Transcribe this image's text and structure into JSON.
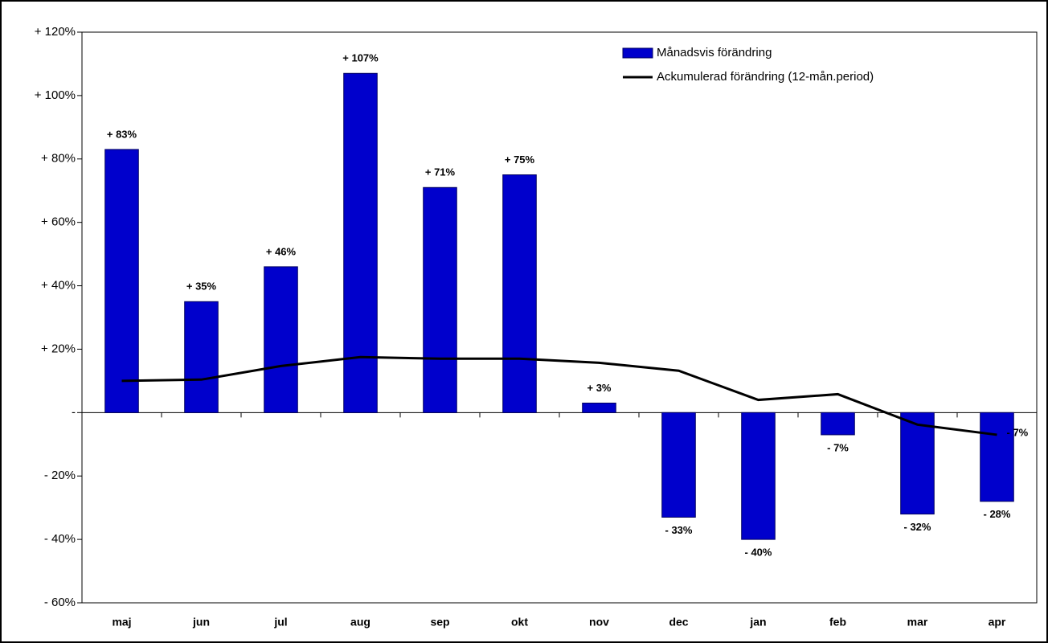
{
  "chart_data": {
    "type": "bar",
    "categories": [
      "maj",
      "jun",
      "jul",
      "aug",
      "sep",
      "okt",
      "nov",
      "dec",
      "jan",
      "feb",
      "mar",
      "apr"
    ],
    "ylim": [
      -60,
      120
    ],
    "yticks": [
      {
        "value": -60,
        "label": "- 60%"
      },
      {
        "value": -40,
        "label": "- 40%"
      },
      {
        "value": -20,
        "label": "- 20%"
      },
      {
        "value": 0,
        "label": "-"
      },
      {
        "value": 20,
        "label": "+ 20%"
      },
      {
        "value": 40,
        "label": "+ 40%"
      },
      {
        "value": 60,
        "label": "+ 60%"
      },
      {
        "value": 80,
        "label": "+ 80%"
      },
      {
        "value": 100,
        "label": "+ 100%"
      },
      {
        "value": 120,
        "label": "+ 120%"
      }
    ],
    "legend": "top-right",
    "series": [
      {
        "name": "Månadsvis förändring",
        "type": "bar",
        "color": "#0000cc",
        "values": [
          83,
          35,
          46,
          107,
          71,
          75,
          3,
          -33,
          -40,
          -7,
          -32,
          -28
        ],
        "value_labels": [
          "+ 83%",
          "+ 35%",
          "+ 46%",
          "+ 107%",
          "+ 71%",
          "+ 75%",
          "+ 3%",
          "- 33%",
          "- 40%",
          "- 7%",
          "- 32%",
          "- 28%"
        ]
      },
      {
        "name": "Ackumulerad förändring (12-mån.period)",
        "type": "line",
        "color": "#000000",
        "values": [
          10,
          10.4,
          14.7,
          17.5,
          17,
          17,
          15.7,
          13.2,
          4,
          5.8,
          -3.8,
          -7
        ],
        "value_labels": [
          null,
          null,
          null,
          null,
          null,
          null,
          null,
          null,
          null,
          null,
          null,
          "- 7%"
        ]
      }
    ]
  }
}
